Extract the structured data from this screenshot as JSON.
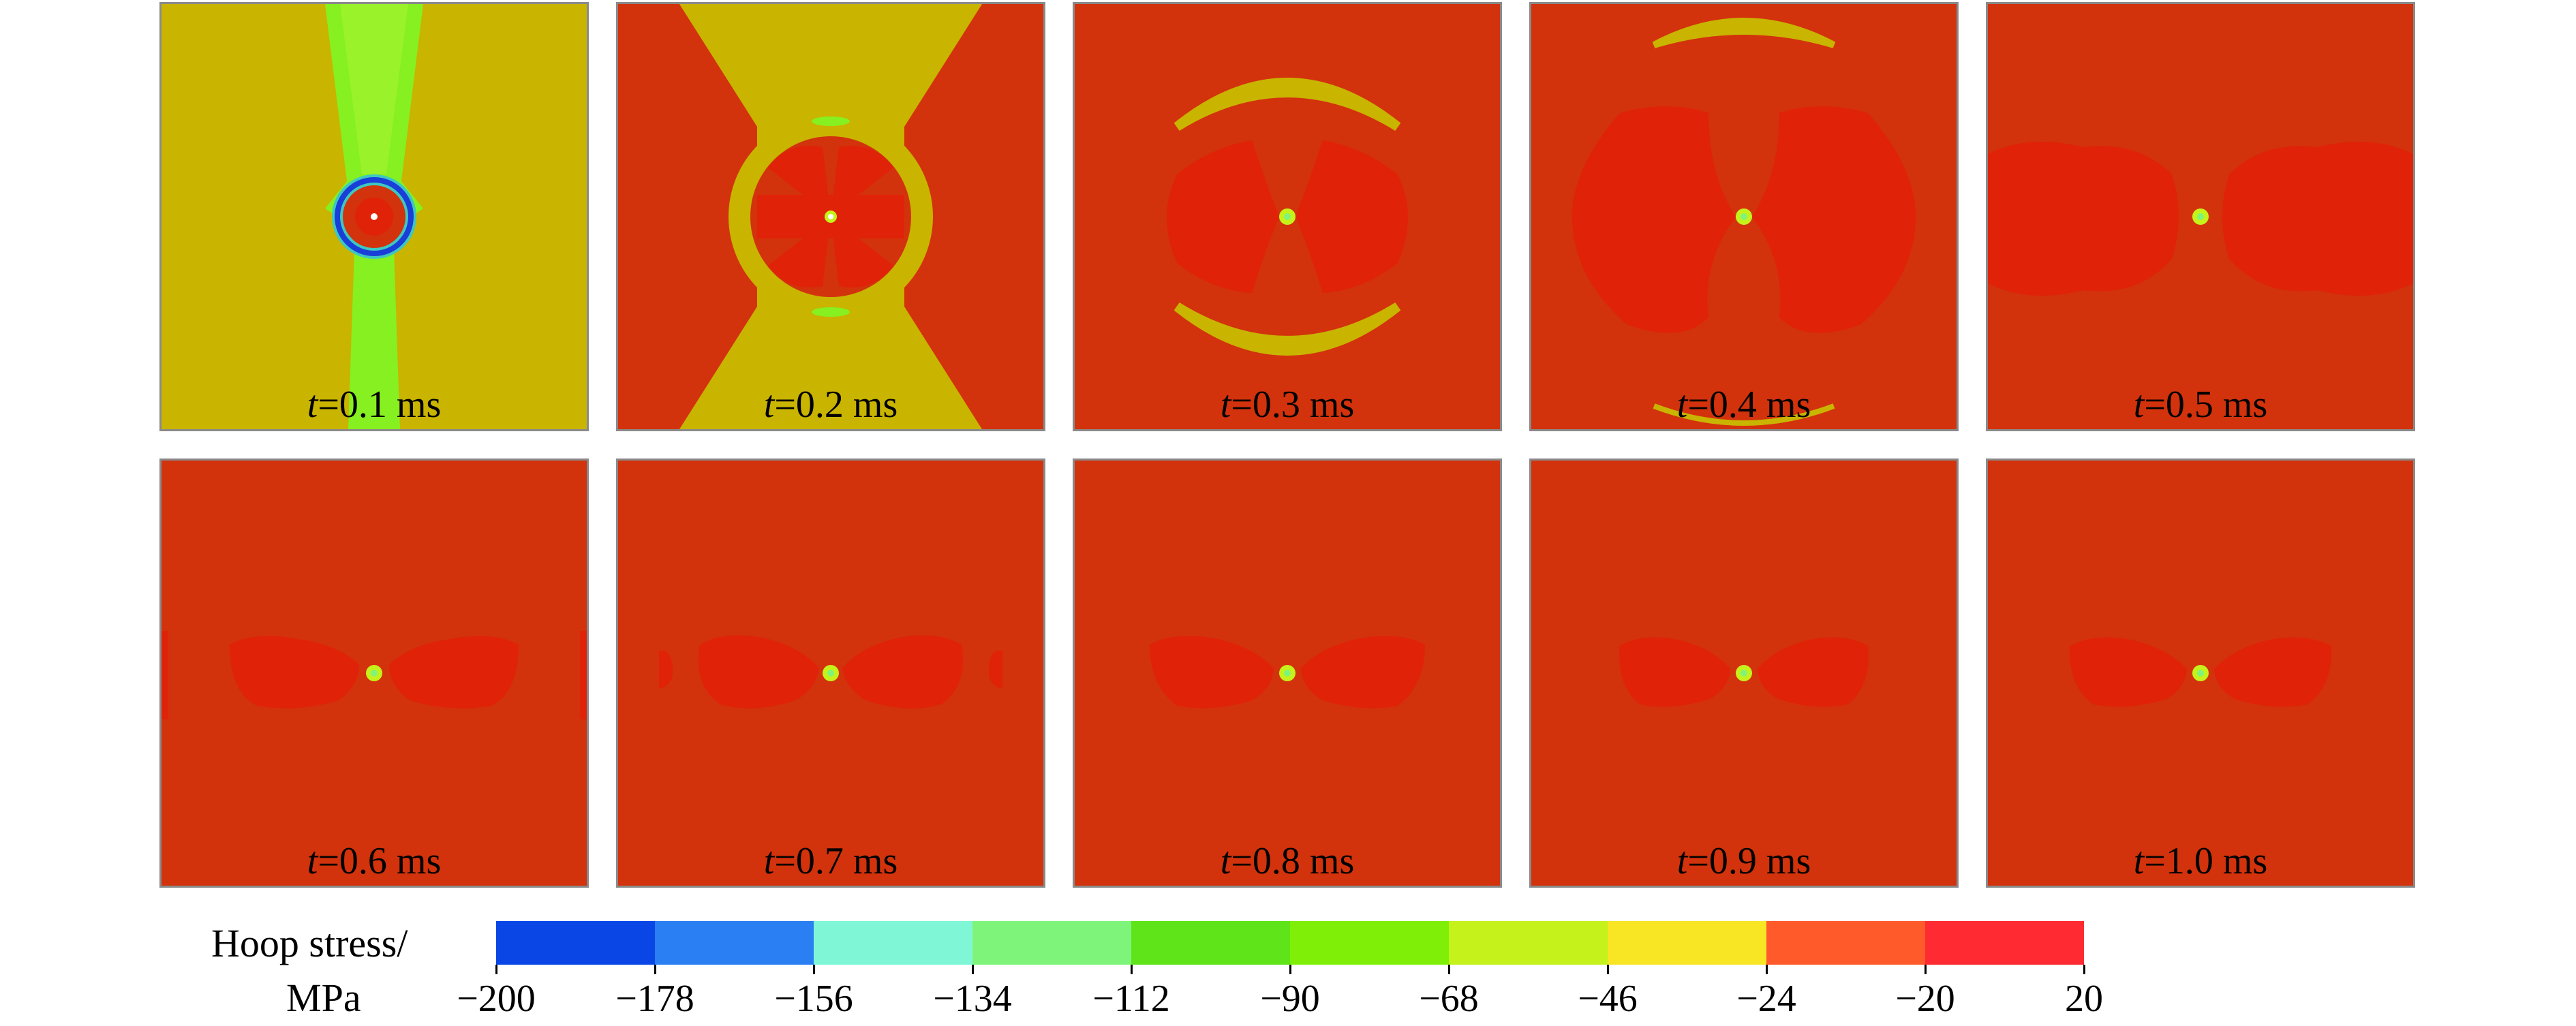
{
  "panels": [
    {
      "var": "t",
      "text": "=0.1 ms"
    },
    {
      "var": "t",
      "text": "=0.2 ms"
    },
    {
      "var": "t",
      "text": "=0.3 ms"
    },
    {
      "var": "t",
      "text": "=0.4 ms"
    },
    {
      "var": "t",
      "text": "=0.5 ms"
    },
    {
      "var": "t",
      "text": "=0.6 ms"
    },
    {
      "var": "t",
      "text": "=0.7 ms"
    },
    {
      "var": "t",
      "text": "=0.8 ms"
    },
    {
      "var": "t",
      "text": "=0.9 ms"
    },
    {
      "var": "t",
      "text": "=1.0 ms"
    }
  ],
  "colorbar": {
    "title_line1": "Hoop stress/",
    "title_line2": "MPa",
    "tick_labels": [
      "−200",
      "−178",
      "−156",
      "−134",
      "−112",
      "−90",
      "−68",
      "−46",
      "−24",
      "−20",
      "20"
    ],
    "colors": [
      "#0a46e6",
      "#2a7ff2",
      "#7ff7d6",
      "#7ef57a",
      "#5ee418",
      "#7fef08",
      "#c4f21a",
      "#f8e524",
      "#ff5a2a",
      "#ff2a32"
    ]
  },
  "field_colors": {
    "background_compressive": "#c9b400",
    "background_tensile": "#d2320c",
    "damage_zone": "#e02208",
    "compression_wedge": "#86f020",
    "ring_blue": "#1a3ed8",
    "ring_cyan": "#3ec8c0"
  }
}
